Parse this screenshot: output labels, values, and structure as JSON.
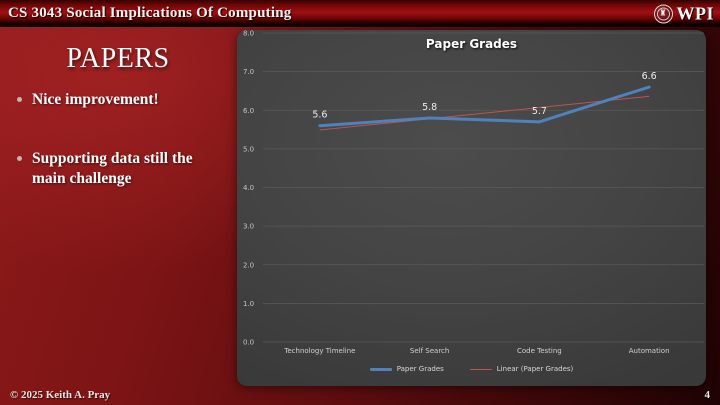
{
  "header": {
    "title": "CS 3043 Social Implications Of Computing",
    "logo_text": "WPI",
    "logo_seal_icon": "wpi-seal"
  },
  "slide": {
    "title": "PAPERS",
    "bullets": [
      "Nice improvement!",
      "Supporting data still the main challenge"
    ]
  },
  "footer": {
    "copyright": "© 2025 Keith A. Pray",
    "page_number": "4"
  },
  "colors": {
    "slide_red": "#8e1a1b",
    "header_red": "#a01013",
    "chart_bg": "#444444",
    "series_blue": "#4f81bd",
    "trend_red": "#bc544f",
    "gridline_gray": "#5a5a5a"
  },
  "chart_data": {
    "type": "line",
    "title": "Paper Grades",
    "categories": [
      "Technology Timeline",
      "Self Search",
      "Code Testing",
      "Automation"
    ],
    "series": [
      {
        "name": "Paper Grades",
        "type": "line",
        "color": "#4f81bd",
        "values": [
          5.6,
          5.8,
          5.7,
          6.6
        ]
      },
      {
        "name": "Linear (Paper Grades)",
        "type": "linear-trendline",
        "color": "#bc544f"
      }
    ],
    "data_labels": [
      "5.6",
      "5.8",
      "5.7",
      "6.6"
    ],
    "xlabel": "",
    "ylabel": "",
    "ylim": [
      0,
      8
    ],
    "ytick_step": 1,
    "ytick_labels": [
      "0.0",
      "1.0",
      "2.0",
      "3.0",
      "4.0",
      "5.0",
      "6.0",
      "7.0",
      "8.0"
    ],
    "grid": true,
    "legend_position": "bottom"
  }
}
